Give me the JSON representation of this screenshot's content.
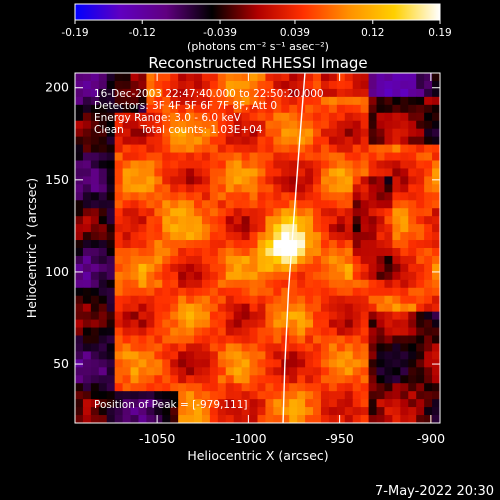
{
  "colorbar": {
    "ticks": [
      "-0.19",
      "-0.12",
      "-0.039",
      "0.039",
      "0.12",
      "0.19"
    ],
    "tick_values": [
      -0.19,
      -0.12,
      -0.039,
      0.039,
      0.12,
      0.19
    ],
    "unit_label": "(photons cm⁻² s⁻¹ asec⁻²)",
    "colors": [
      "#0000ff",
      "#6000c0",
      "#600080",
      "#000000",
      "#b00000",
      "#ff3000",
      "#ff9000",
      "#ffd000",
      "#ffffff"
    ]
  },
  "chart_data": {
    "type": "heatmap",
    "title": "Reconstructed RHESSI Image",
    "xlabel": "Heliocentric X (arcsec)",
    "ylabel": "Heliocentric Y (arcsec)",
    "xlim": [
      -1095,
      -895
    ],
    "ylim": [
      18,
      208
    ],
    "x_ticks": [
      "-1050",
      "-1000",
      "-950",
      "-900"
    ],
    "x_tick_values": [
      -1050,
      -1000,
      -950,
      -900
    ],
    "y_ticks": [
      "200",
      "150",
      "100",
      "50"
    ],
    "y_tick_values": [
      200,
      150,
      100,
      50
    ],
    "zlim": [
      -0.19,
      0.19
    ],
    "peak": {
      "x": -979,
      "y": 111
    },
    "annotations": {
      "time": "16-Dec-2003 22:47:40.000 to 22:50:20.000",
      "detectors": "Detectors: 3F 4F 5F 6F 7F 8F, Att 0",
      "energy": "Energy Range: 3.0 - 6.0 keV",
      "clean": "Clean     Total counts: 1.03E+04",
      "peak_label": "Position of Peak = [-979,111]"
    },
    "limb_points": [
      [
        -969,
        208
      ],
      [
        -972,
        170
      ],
      [
        -975,
        130
      ],
      [
        -978,
        90
      ],
      [
        -980,
        50
      ],
      [
        -981,
        18
      ]
    ]
  },
  "footer": {
    "date": "7-May-2022 20:30"
  }
}
